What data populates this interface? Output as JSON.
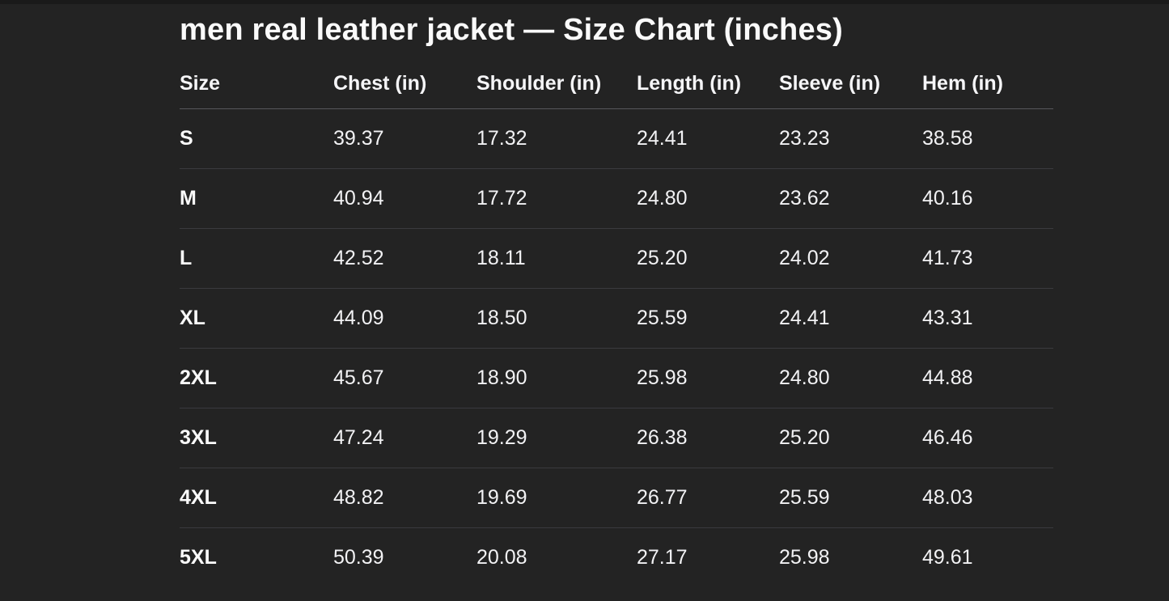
{
  "header": {
    "title": "men real leather jacket — Size Chart (inches)"
  },
  "size_chart": {
    "columns": [
      "Size",
      "Chest (in)",
      "Shoulder (in)",
      "Length (in)",
      "Sleeve (in)",
      "Hem (in)"
    ],
    "rows": [
      {
        "size": "S",
        "chest": "39.37",
        "shoulder": "17.32",
        "length": "24.41",
        "sleeve": "23.23",
        "hem": "38.58"
      },
      {
        "size": "M",
        "chest": "40.94",
        "shoulder": "17.72",
        "length": "24.80",
        "sleeve": "23.62",
        "hem": "40.16"
      },
      {
        "size": "L",
        "chest": "42.52",
        "shoulder": "18.11",
        "length": "25.20",
        "sleeve": "24.02",
        "hem": "41.73"
      },
      {
        "size": "XL",
        "chest": "44.09",
        "shoulder": "18.50",
        "length": "25.59",
        "sleeve": "24.41",
        "hem": "43.31"
      },
      {
        "size": "2XL",
        "chest": "45.67",
        "shoulder": "18.90",
        "length": "25.98",
        "sleeve": "24.80",
        "hem": "44.88"
      },
      {
        "size": "3XL",
        "chest": "47.24",
        "shoulder": "19.29",
        "length": "26.38",
        "sleeve": "25.20",
        "hem": "46.46"
      },
      {
        "size": "4XL",
        "chest": "48.82",
        "shoulder": "19.69",
        "length": "26.77",
        "sleeve": "25.59",
        "hem": "48.03"
      },
      {
        "size": "5XL",
        "chest": "50.39",
        "shoulder": "20.08",
        "length": "27.17",
        "sleeve": "25.98",
        "hem": "49.61"
      }
    ]
  },
  "colors": {
    "background": "#232323",
    "top_edge": "#1a1a1a",
    "text": "#f5f5f7",
    "header_divider": "#57575b",
    "row_divider": "#3a3a3e"
  }
}
